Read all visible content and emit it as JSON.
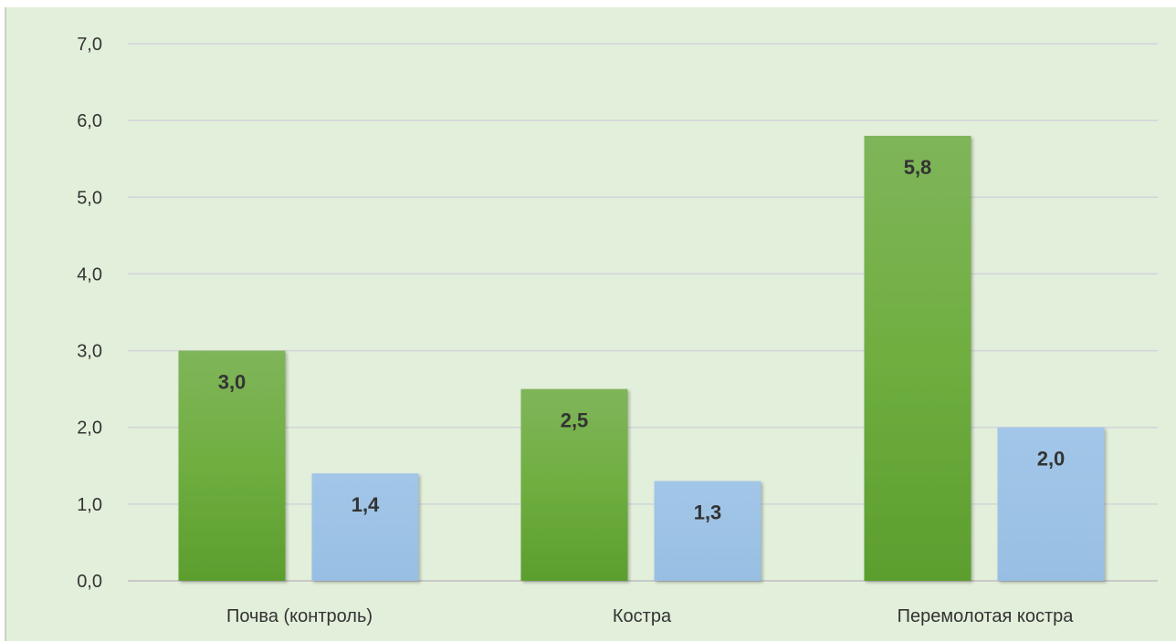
{
  "chart_data": {
    "type": "bar",
    "title": "",
    "xlabel": "",
    "ylabel": "",
    "categories": [
      "Почва (контроль)",
      "Костра",
      "Перемолотая костра"
    ],
    "series": [
      {
        "values": [
          3.0,
          2.5,
          5.8
        ],
        "color": "#6aaa3a",
        "labels": [
          "3,0",
          "2,5",
          "5,8"
        ]
      },
      {
        "values": [
          1.4,
          1.3,
          2.0
        ],
        "color": "#9dc3e6",
        "labels": [
          "1,4",
          "1,3",
          "2,0"
        ]
      }
    ],
    "ylim": [
      0,
      7
    ],
    "yticks": [
      0,
      1,
      2,
      3,
      4,
      5,
      6,
      7
    ],
    "ytick_labels": [
      "0,0",
      "1,0",
      "2,0",
      "3,0",
      "4,0",
      "5,0",
      "6,0",
      "7,0"
    ],
    "grid": true,
    "legend": "none",
    "colors": {
      "background": "#e2efda",
      "gridline": "#d3d4dc",
      "baseline": "#c8c8c8"
    }
  }
}
